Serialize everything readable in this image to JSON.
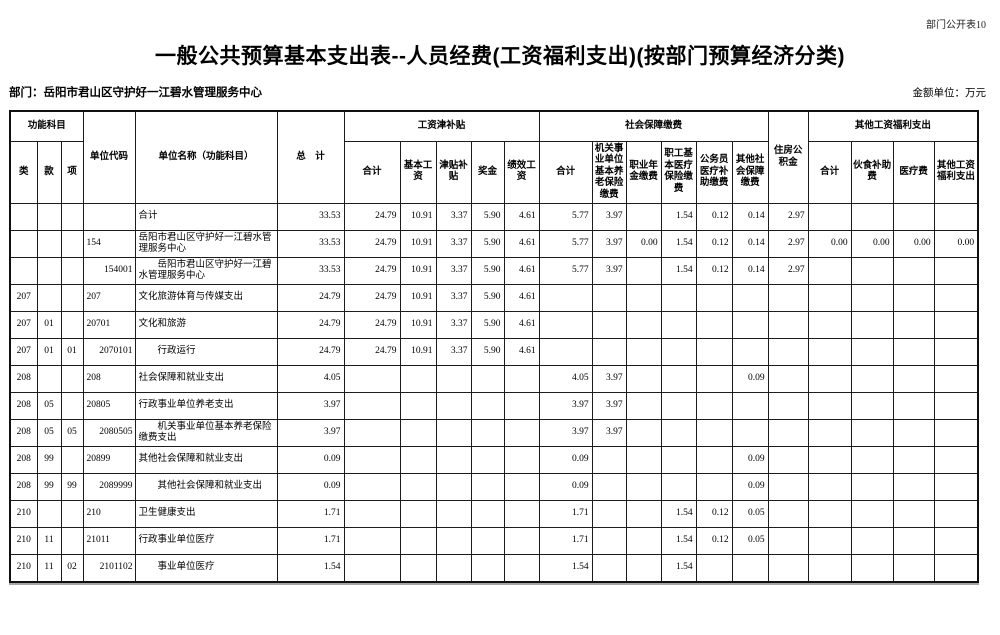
{
  "page": {
    "corner_label": "部门公开表10",
    "title": "一般公共预算基本支出表--人员经费(工资福利支出)(按部门预算经济分类)",
    "department": "部门：岳阳市君山区守护好一江碧水管理服务中心",
    "amount_unit": "金额单位：万元"
  },
  "table": {
    "header": {
      "func_group": "功能科目",
      "lei": "类",
      "kuan": "款",
      "xiang": "项",
      "unit_code": "单位代码",
      "unit_name": "单位名称（功能科目）",
      "total": "总　计",
      "salary_group": "工资津补贴",
      "social_group": "社会保障缴费",
      "housing_fund": "住房公积金",
      "other_group": "其他工资福利支出",
      "salary_sub": [
        "合计",
        "基本工资",
        "津贴补贴",
        "奖金",
        "绩效工资"
      ],
      "social_sub": [
        "合计",
        "机关事业单位基本养老保险缴费",
        "职业年金缴费",
        "职工基本医疗保险缴费",
        "公务员医疗补助缴费",
        "其他社会保障缴费"
      ],
      "other_sub": [
        "合计",
        "伙食补助费",
        "医疗费",
        "其他工资福利支出"
      ]
    },
    "rows": [
      {
        "lei": "",
        "kuan": "",
        "xiang": "",
        "code": "",
        "code_right": false,
        "name": "合计",
        "name_indent": false,
        "values": [
          "33.53",
          "24.79",
          "10.91",
          "3.37",
          "5.90",
          "4.61",
          "5.77",
          "3.97",
          "",
          "1.54",
          "0.12",
          "0.14",
          "2.97",
          "",
          "",
          "",
          ""
        ]
      },
      {
        "lei": "",
        "kuan": "",
        "xiang": "",
        "code": "154",
        "code_right": false,
        "name": "岳阳市君山区守护好一江碧水管理服务中心",
        "name_indent": false,
        "values": [
          "33.53",
          "24.79",
          "10.91",
          "3.37",
          "5.90",
          "4.61",
          "5.77",
          "3.97",
          "0.00",
          "1.54",
          "0.12",
          "0.14",
          "2.97",
          "0.00",
          "0.00",
          "0.00",
          "0.00"
        ]
      },
      {
        "lei": "",
        "kuan": "",
        "xiang": "",
        "code": "154001",
        "code_right": true,
        "name": "岳阳市君山区守护好一江碧水管理服务中心",
        "name_indent": true,
        "values": [
          "33.53",
          "24.79",
          "10.91",
          "3.37",
          "5.90",
          "4.61",
          "5.77",
          "3.97",
          "",
          "1.54",
          "0.12",
          "0.14",
          "2.97",
          "",
          "",
          "",
          ""
        ]
      },
      {
        "lei": "207",
        "kuan": "",
        "xiang": "",
        "code": "207",
        "code_right": false,
        "name": "文化旅游体育与传媒支出",
        "name_indent": false,
        "values": [
          "24.79",
          "24.79",
          "10.91",
          "3.37",
          "5.90",
          "4.61",
          "",
          "",
          "",
          "",
          "",
          "",
          "",
          "",
          "",
          "",
          ""
        ]
      },
      {
        "lei": "207",
        "kuan": "01",
        "xiang": "",
        "code": "20701",
        "code_right": false,
        "name": "文化和旅游",
        "name_indent": false,
        "values": [
          "24.79",
          "24.79",
          "10.91",
          "3.37",
          "5.90",
          "4.61",
          "",
          "",
          "",
          "",
          "",
          "",
          "",
          "",
          "",
          "",
          ""
        ]
      },
      {
        "lei": "207",
        "kuan": "01",
        "xiang": "01",
        "code": "2070101",
        "code_right": true,
        "name": "行政运行",
        "name_indent": true,
        "values": [
          "24.79",
          "24.79",
          "10.91",
          "3.37",
          "5.90",
          "4.61",
          "",
          "",
          "",
          "",
          "",
          "",
          "",
          "",
          "",
          "",
          ""
        ]
      },
      {
        "lei": "208",
        "kuan": "",
        "xiang": "",
        "code": "208",
        "code_right": false,
        "name": "社会保障和就业支出",
        "name_indent": false,
        "values": [
          "4.05",
          "",
          "",
          "",
          "",
          "",
          "4.05",
          "3.97",
          "",
          "",
          "",
          "0.09",
          "",
          "",
          "",
          "",
          ""
        ]
      },
      {
        "lei": "208",
        "kuan": "05",
        "xiang": "",
        "code": "20805",
        "code_right": false,
        "name": "行政事业单位养老支出",
        "name_indent": false,
        "values": [
          "3.97",
          "",
          "",
          "",
          "",
          "",
          "3.97",
          "3.97",
          "",
          "",
          "",
          "",
          "",
          "",
          "",
          "",
          ""
        ]
      },
      {
        "lei": "208",
        "kuan": "05",
        "xiang": "05",
        "code": "2080505",
        "code_right": true,
        "name": "机关事业单位基本养老保险缴费支出",
        "name_indent": true,
        "values": [
          "3.97",
          "",
          "",
          "",
          "",
          "",
          "3.97",
          "3.97",
          "",
          "",
          "",
          "",
          "",
          "",
          "",
          "",
          ""
        ]
      },
      {
        "lei": "208",
        "kuan": "99",
        "xiang": "",
        "code": "20899",
        "code_right": false,
        "name": "其他社会保障和就业支出",
        "name_indent": false,
        "values": [
          "0.09",
          "",
          "",
          "",
          "",
          "",
          "0.09",
          "",
          "",
          "",
          "",
          "0.09",
          "",
          "",
          "",
          "",
          ""
        ]
      },
      {
        "lei": "208",
        "kuan": "99",
        "xiang": "99",
        "code": "2089999",
        "code_right": true,
        "name": "其他社会保障和就业支出",
        "name_indent": true,
        "values": [
          "0.09",
          "",
          "",
          "",
          "",
          "",
          "0.09",
          "",
          "",
          "",
          "",
          "0.09",
          "",
          "",
          "",
          "",
          ""
        ]
      },
      {
        "lei": "210",
        "kuan": "",
        "xiang": "",
        "code": "210",
        "code_right": false,
        "name": "卫生健康支出",
        "name_indent": false,
        "values": [
          "1.71",
          "",
          "",
          "",
          "",
          "",
          "1.71",
          "",
          "",
          "1.54",
          "0.12",
          "0.05",
          "",
          "",
          "",
          "",
          ""
        ]
      },
      {
        "lei": "210",
        "kuan": "11",
        "xiang": "",
        "code": "21011",
        "code_right": false,
        "name": "行政事业单位医疗",
        "name_indent": false,
        "values": [
          "1.71",
          "",
          "",
          "",
          "",
          "",
          "1.71",
          "",
          "",
          "1.54",
          "0.12",
          "0.05",
          "",
          "",
          "",
          "",
          ""
        ]
      },
      {
        "lei": "210",
        "kuan": "11",
        "xiang": "02",
        "code": "2101102",
        "code_right": true,
        "name": "事业单位医疗",
        "name_indent": true,
        "values": [
          "1.54",
          "",
          "",
          "",
          "",
          "",
          "1.54",
          "",
          "",
          "1.54",
          "",
          "",
          "",
          "",
          "",
          "",
          ""
        ]
      }
    ]
  }
}
